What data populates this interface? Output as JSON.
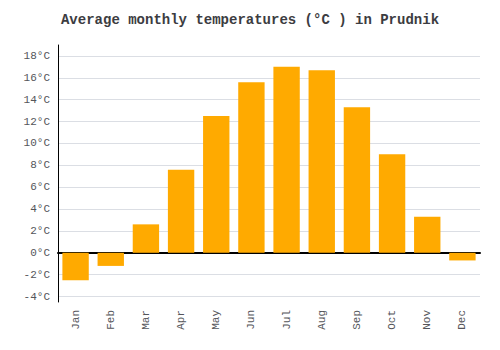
{
  "chart_data": {
    "type": "bar",
    "title": "Average monthly temperatures (°C ) in Prudnik",
    "categories": [
      "Jan",
      "Feb",
      "Mar",
      "Apr",
      "May",
      "Jun",
      "Jul",
      "Aug",
      "Sep",
      "Oct",
      "Nov",
      "Dec"
    ],
    "values": [
      -2.5,
      -1.2,
      2.6,
      7.6,
      12.5,
      15.6,
      17.0,
      16.7,
      13.3,
      9.0,
      3.3,
      -0.7
    ],
    "color": "#FFAA00",
    "ylim": [
      -4.5,
      19
    ],
    "yticks": [
      {
        "value": -4,
        "label": "-4°C"
      },
      {
        "value": -2,
        "label": "-2°C"
      },
      {
        "value": 0,
        "label": "0°C"
      },
      {
        "value": 2,
        "label": "2°C"
      },
      {
        "value": 4,
        "label": "4°C"
      },
      {
        "value": 6,
        "label": "6°C"
      },
      {
        "value": 8,
        "label": "8°C"
      },
      {
        "value": 10,
        "label": "10°C"
      },
      {
        "value": 12,
        "label": "12°C"
      },
      {
        "value": 14,
        "label": "14°C"
      },
      {
        "value": 16,
        "label": "16°C"
      },
      {
        "value": 18,
        "label": "18°C"
      }
    ],
    "grid": true
  }
}
